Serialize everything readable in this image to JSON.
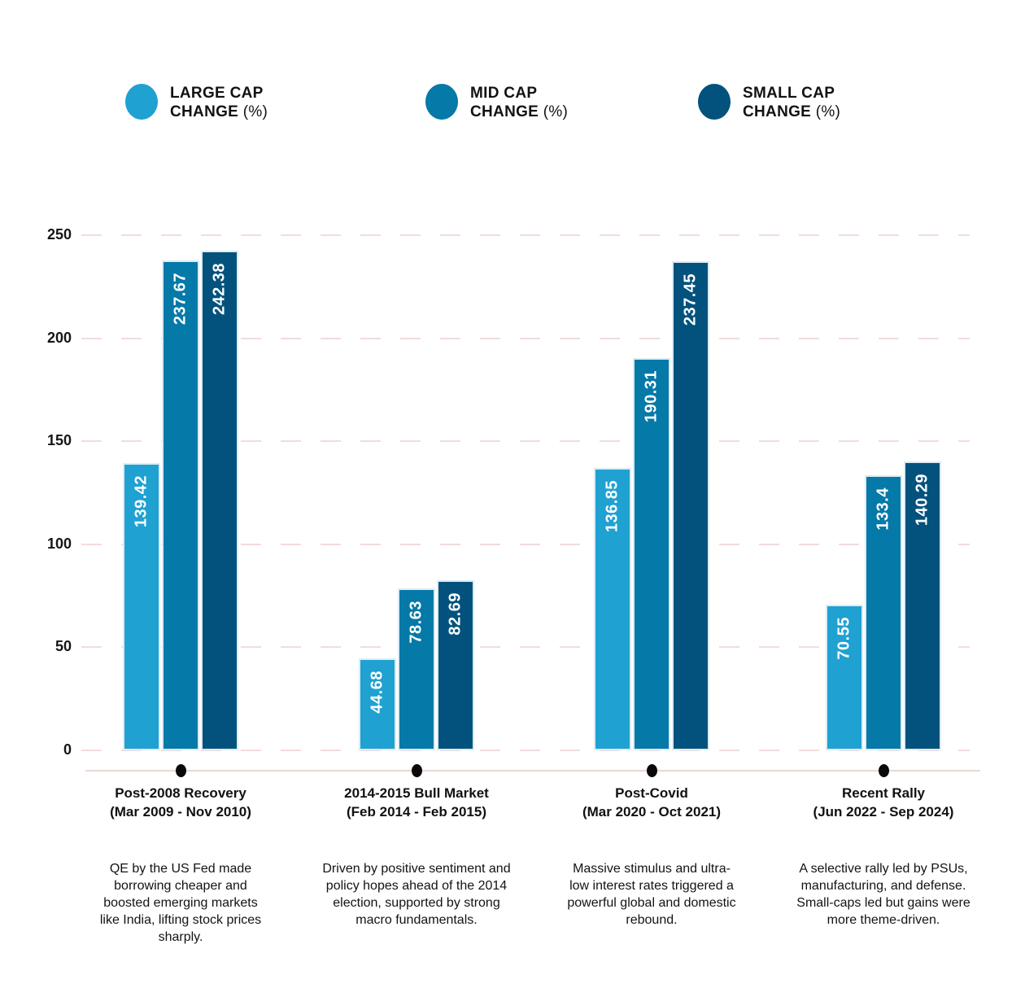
{
  "legend": {
    "items": [
      {
        "line1": "LARGE CAP",
        "line2": "CHANGE",
        "suffix": "(%)",
        "color": "#1fa1d2"
      },
      {
        "line1": "MID CAP",
        "line2": "CHANGE",
        "suffix": "(%)",
        "color": "#0579a8"
      },
      {
        "line1": "SMALL CAP",
        "line2": "CHANGE",
        "suffix": "(%)",
        "color": "#02527d"
      }
    ]
  },
  "chart_data": {
    "type": "bar",
    "title": "",
    "categories": [
      {
        "label": "Post-2008 Recovery",
        "dates": "(Mar 2009 - Nov 2010)",
        "description": "QE by the US Fed made borrowing cheaper and boosted emerging markets like India, lifting stock prices sharply."
      },
      {
        "label": "2014-2015 Bull Market",
        "dates": "(Feb 2014 - Feb 2015)",
        "description": "Driven by positive sentiment and policy hopes ahead of the 2014 election, supported by strong macro fundamentals."
      },
      {
        "label": "Post-Covid",
        "dates": "(Mar 2020 - Oct 2021)",
        "description": "Massive stimulus and ultra-low interest rates triggered a powerful global and domestic rebound."
      },
      {
        "label": "Recent Rally",
        "dates": "(Jun 2022 - Sep 2024)",
        "description": "A selective rally led by PSUs, manufacturing, and defense. Small-caps led but gains were more theme-driven."
      }
    ],
    "series": [
      {
        "name": "Large Cap Change (%)",
        "color": "#1fa1d2",
        "values": [
          139.42,
          44.68,
          136.85,
          70.55
        ]
      },
      {
        "name": "Mid Cap Change (%)",
        "color": "#0579a8",
        "values": [
          237.67,
          78.63,
          190.31,
          133.4
        ]
      },
      {
        "name": "Small Cap Change (%)",
        "color": "#02527d",
        "values": [
          242.38,
          82.69,
          237.45,
          140.29
        ]
      }
    ],
    "ylim": [
      0,
      250
    ],
    "yticks": [
      0,
      50,
      100,
      150,
      200,
      250
    ],
    "grid": "dashed horizontal pink lines",
    "legend_position": "top"
  },
  "colors": {
    "grid": "#f2dcdc",
    "timeline": "#ead8d3",
    "dot": "#0a0a0a",
    "bar_border": "#dcebf4",
    "text": "#111111",
    "bar_label": "#ffffff"
  }
}
